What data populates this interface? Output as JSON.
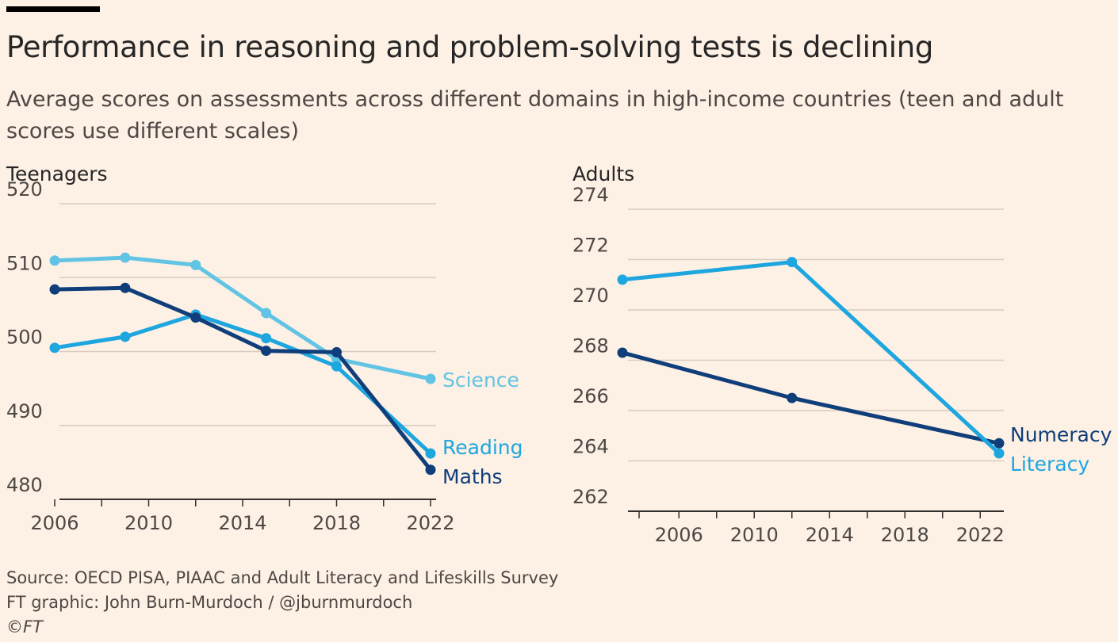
{
  "title": "Performance in reasoning and problem-solving tests is declining",
  "subtitle": "Average scores on assessments across different domains in high-income countries (teen and adult scores use different scales)",
  "footer": {
    "source": "Source: OECD PISA, PIAAC and Adult Literacy and Lifeskills Survey",
    "credit": "FT graphic: John Burn-Murdoch / @jburnmurdoch",
    "copyright": "©FT"
  },
  "colors": {
    "background": "#fdf0e4",
    "grid": "#d8ccc1",
    "axis": "#33302e",
    "science": "#62c4e4",
    "reading": "#1ea6df",
    "maths": "#0f3e7a",
    "numeracy": "#0f3e7a",
    "literacy": "#1ea6df"
  },
  "chart_data": [
    {
      "type": "line",
      "title": "Teenagers",
      "xlim": [
        2006,
        2022
      ],
      "ylim": [
        480,
        520
      ],
      "xticks": [
        2006,
        2010,
        2014,
        2018,
        2022
      ],
      "yticks": [
        480,
        490,
        500,
        510,
        520
      ],
      "grid": true,
      "series": [
        {
          "name": "Science",
          "color": "#62c4e4",
          "x": [
            2006,
            2009,
            2012,
            2015,
            2018,
            2022
          ],
          "y": [
            512.3,
            512.7,
            511.7,
            505.2,
            499.0,
            496.3
          ]
        },
        {
          "name": "Reading",
          "color": "#1ea6df",
          "x": [
            2006,
            2009,
            2012,
            2015,
            2018,
            2022
          ],
          "y": [
            500.5,
            502.0,
            505.0,
            501.8,
            498.0,
            486.2
          ]
        },
        {
          "name": "Maths",
          "color": "#0f3e7a",
          "x": [
            2006,
            2009,
            2012,
            2015,
            2018,
            2022
          ],
          "y": [
            508.4,
            508.6,
            504.6,
            500.1,
            499.9,
            484.0
          ]
        }
      ]
    },
    {
      "type": "line",
      "title": "Adults",
      "xlim": [
        2003,
        2023
      ],
      "ylim": [
        262,
        274
      ],
      "xticks": [
        2006,
        2010,
        2014,
        2018,
        2022
      ],
      "yticks": [
        262,
        264,
        266,
        268,
        270,
        272,
        274
      ],
      "grid": true,
      "series": [
        {
          "name": "Numeracy",
          "color": "#0f3e7a",
          "x": [
            2003,
            2012,
            2023
          ],
          "y": [
            268.3,
            266.5,
            264.7
          ]
        },
        {
          "name": "Literacy",
          "color": "#1ea6df",
          "x": [
            2003,
            2012,
            2023
          ],
          "y": [
            271.2,
            271.9,
            264.3
          ]
        }
      ]
    }
  ]
}
